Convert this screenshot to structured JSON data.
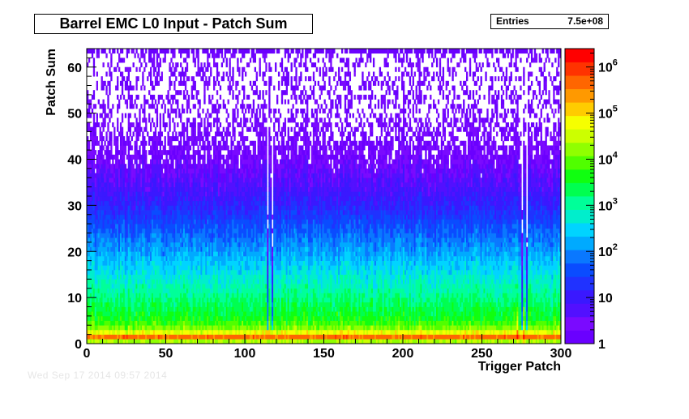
{
  "title": "Barrel EMC L0 Input - Patch Sum",
  "stats": {
    "entries_label": "Entries",
    "entries_value": "7.5e+08"
  },
  "date_stamp": "Wed Sep 17 2014 09:57 2014",
  "chart_data": {
    "type": "heatmap",
    "title": "Barrel EMC L0 Input - Patch Sum",
    "xlabel": "Trigger Patch",
    "ylabel": "Patch Sum",
    "xlim": [
      0,
      300
    ],
    "ylim": [
      0,
      64
    ],
    "x_bins": 300,
    "y_bins": 64,
    "x_ticks": [
      0,
      50,
      100,
      150,
      200,
      250,
      300
    ],
    "y_ticks": [
      0,
      10,
      20,
      30,
      40,
      50,
      60
    ],
    "z_scale": "log",
    "zlim": [
      1,
      2500000
    ],
    "z_ticks": [
      {
        "value": 1,
        "label": "1"
      },
      {
        "value": 10,
        "label": "10"
      },
      {
        "value": 100,
        "label": "10",
        "exp": "2"
      },
      {
        "value": 1000,
        "label": "10",
        "exp": "3"
      },
      {
        "value": 10000,
        "label": "10",
        "exp": "4"
      },
      {
        "value": 100000,
        "label": "10",
        "exp": "5"
      },
      {
        "value": 1000000,
        "label": "10",
        "exp": "6"
      }
    ],
    "row_levels": [
      {
        "patch_sum": 0,
        "counts": 300
      },
      {
        "patch_sum": 1,
        "counts": 1500000
      },
      {
        "patch_sum": 2,
        "counts": 150000
      },
      {
        "patch_sum": 3,
        "counts": 20000
      },
      {
        "patch_sum": 5,
        "counts": 5000
      },
      {
        "patch_sum": 10,
        "counts": 1500
      },
      {
        "patch_sum": 15,
        "counts": 500
      },
      {
        "patch_sum": 20,
        "counts": 150
      },
      {
        "patch_sum": 25,
        "counts": 50
      },
      {
        "patch_sum": 30,
        "counts": 15
      },
      {
        "patch_sum": 35,
        "counts": 6
      },
      {
        "patch_sum": 40,
        "counts": 3
      },
      {
        "patch_sum": 50,
        "counts": 1.2
      },
      {
        "patch_sum": 60,
        "counts": 1
      },
      {
        "patch_sum": 63,
        "counts": 1
      }
    ],
    "overflow_row": {
      "patch_sum": 63,
      "counts": 1
    },
    "dead_patches": [
      114,
      117,
      275,
      278
    ],
    "hot_patches": [
      272,
      276
    ],
    "palette": [
      "#6a00ff",
      "#7a0aff",
      "#5210ff",
      "#3a18ff",
      "#2032ff",
      "#0a4cff",
      "#0a78ff",
      "#00aaff",
      "#00d4ff",
      "#00eecc",
      "#00ff99",
      "#00ff50",
      "#10ff10",
      "#50ff00",
      "#90ff00",
      "#ccff00",
      "#f6ff00",
      "#ffcc00",
      "#ff9900",
      "#ff6600",
      "#ff3300",
      "#ff0000"
    ]
  }
}
